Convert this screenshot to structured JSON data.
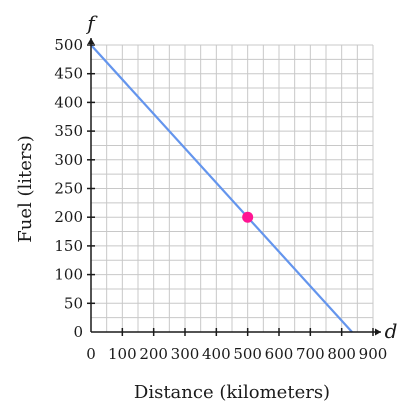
{
  "chart_data": {
    "type": "line",
    "xlabel": "Distance (kilometers)",
    "ylabel": "Fuel (liters)",
    "x_variable": "d",
    "y_variable": "f",
    "xlim": [
      0,
      900
    ],
    "ylim": [
      0,
      500
    ],
    "x_minor_step": 50,
    "y_minor_step": 25,
    "x_ticks": [
      0,
      100,
      200,
      300,
      400,
      500,
      600,
      700,
      800,
      900
    ],
    "y_ticks": [
      0,
      50,
      100,
      150,
      200,
      250,
      300,
      350,
      400,
      450,
      500
    ],
    "grid": true,
    "series": [
      {
        "x": [
          0,
          833
        ],
        "y": [
          500,
          0
        ],
        "color": "#6495ED"
      }
    ],
    "highlight_point": {
      "x": 500,
      "y": 200,
      "color": "#FF1493"
    }
  }
}
